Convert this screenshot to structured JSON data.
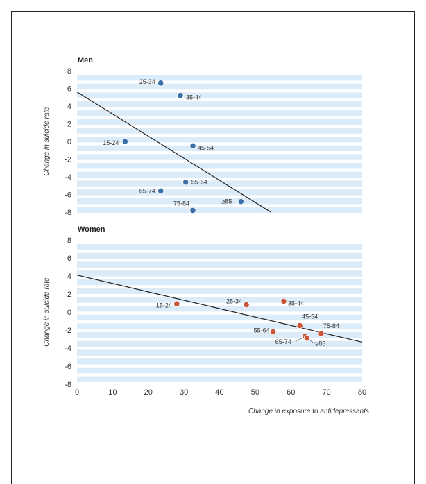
{
  "chart_data": {
    "type": "scatter",
    "xlabel": "Change in exposure to antidepressants",
    "xlim": [
      0,
      80
    ],
    "xticks": [
      0,
      10,
      20,
      30,
      40,
      50,
      60,
      70,
      80
    ],
    "ylabel": "Change in suicide rate",
    "ylim": [
      -8,
      8
    ],
    "yticks": [
      8,
      6,
      4,
      2,
      0,
      -2,
      -4,
      -6,
      -8
    ],
    "colors": {
      "men": "#3a6fa8",
      "women": "#c9553a",
      "band": "#dcebf8",
      "line": "#222222"
    },
    "panels": [
      {
        "title": "Men",
        "points": [
          {
            "label": "25-34",
            "x": 23.5,
            "y": 6.6
          },
          {
            "label": "35-44",
            "x": 29,
            "y": 5.2
          },
          {
            "label": "15-24",
            "x": 13.5,
            "y": 0.0
          },
          {
            "label": "45-54",
            "x": 32.5,
            "y": -0.5
          },
          {
            "label": "55-64",
            "x": 30.5,
            "y": -4.6
          },
          {
            "label": "65-74",
            "x": 23.5,
            "y": -5.6
          },
          {
            "label": "≥85",
            "x": 46,
            "y": -6.8
          },
          {
            "label": "75-84",
            "x": 32.5,
            "y": -7.8
          }
        ],
        "trend": {
          "x0": 0,
          "y0": 5.6,
          "slope": -0.25
        }
      },
      {
        "title": "Women",
        "points": [
          {
            "label": "15-24",
            "x": 28,
            "y": 0.9
          },
          {
            "label": "25-34",
            "x": 47.5,
            "y": 0.8
          },
          {
            "label": "35-44",
            "x": 58,
            "y": 1.2
          },
          {
            "label": "45-54",
            "x": 62.5,
            "y": -1.5
          },
          {
            "label": "55-64",
            "x": 55,
            "y": -2.2
          },
          {
            "label": "75-84",
            "x": 68.5,
            "y": -2.4
          },
          {
            "label": "65-74",
            "x": 64,
            "y": -2.7
          },
          {
            "label": "≥85",
            "x": 64.5,
            "y": -2.9
          }
        ],
        "trend": {
          "x0": 0,
          "y0": 4.1,
          "slope": -0.093
        }
      }
    ]
  }
}
